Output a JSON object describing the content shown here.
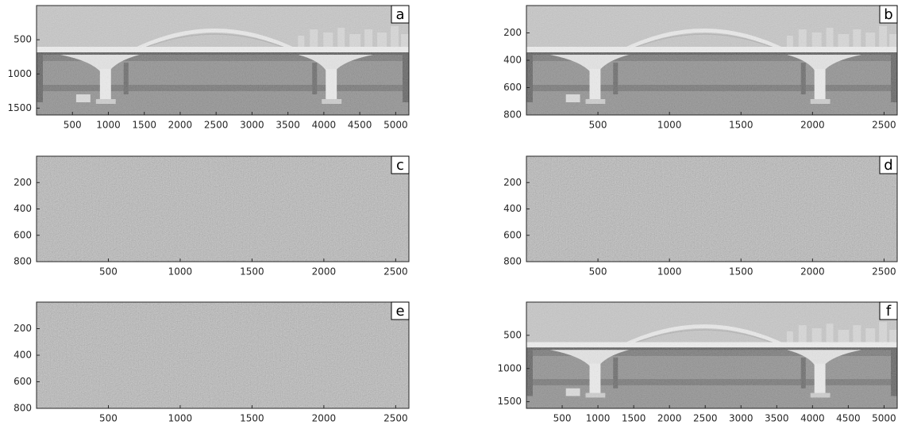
{
  "chart_data": [
    {
      "type": "image",
      "label": "a",
      "xlim": [
        0,
        5184
      ],
      "ylim": [
        0,
        1600
      ],
      "xticks": [
        500,
        1000,
        1500,
        2000,
        2500,
        3000,
        3500,
        4000,
        4500,
        5000
      ],
      "yticks": [
        500,
        1000,
        1500
      ]
    },
    {
      "type": "image",
      "label": "b",
      "xlim": [
        0,
        2592
      ],
      "ylim": [
        0,
        800
      ],
      "xticks": [
        500,
        1000,
        1500,
        2000,
        2500
      ],
      "yticks": [
        200,
        400,
        600,
        800
      ]
    },
    {
      "type": "image",
      "label": "c",
      "xlim": [
        0,
        2592
      ],
      "ylim": [
        0,
        800
      ],
      "xticks": [
        500,
        1000,
        1500,
        2000,
        2500
      ],
      "yticks": [
        200,
        400,
        600,
        800
      ]
    },
    {
      "type": "image",
      "label": "d",
      "xlim": [
        0,
        2592
      ],
      "ylim": [
        0,
        800
      ],
      "xticks": [
        500,
        1000,
        1500,
        2000,
        2500
      ],
      "yticks": [
        200,
        400,
        600,
        800
      ]
    },
    {
      "type": "image",
      "label": "e",
      "xlim": [
        0,
        2592
      ],
      "ylim": [
        0,
        800
      ],
      "xticks": [
        500,
        1000,
        1500,
        2000,
        2500
      ],
      "yticks": [
        200,
        400,
        600,
        800
      ]
    },
    {
      "type": "image",
      "label": "f",
      "xlim": [
        0,
        5184
      ],
      "ylim": [
        0,
        1600
      ],
      "xticks": [
        500,
        1000,
        1500,
        2000,
        2500,
        3000,
        3500,
        4000,
        4500,
        5000
      ],
      "yticks": [
        500,
        1000,
        1500
      ]
    }
  ]
}
